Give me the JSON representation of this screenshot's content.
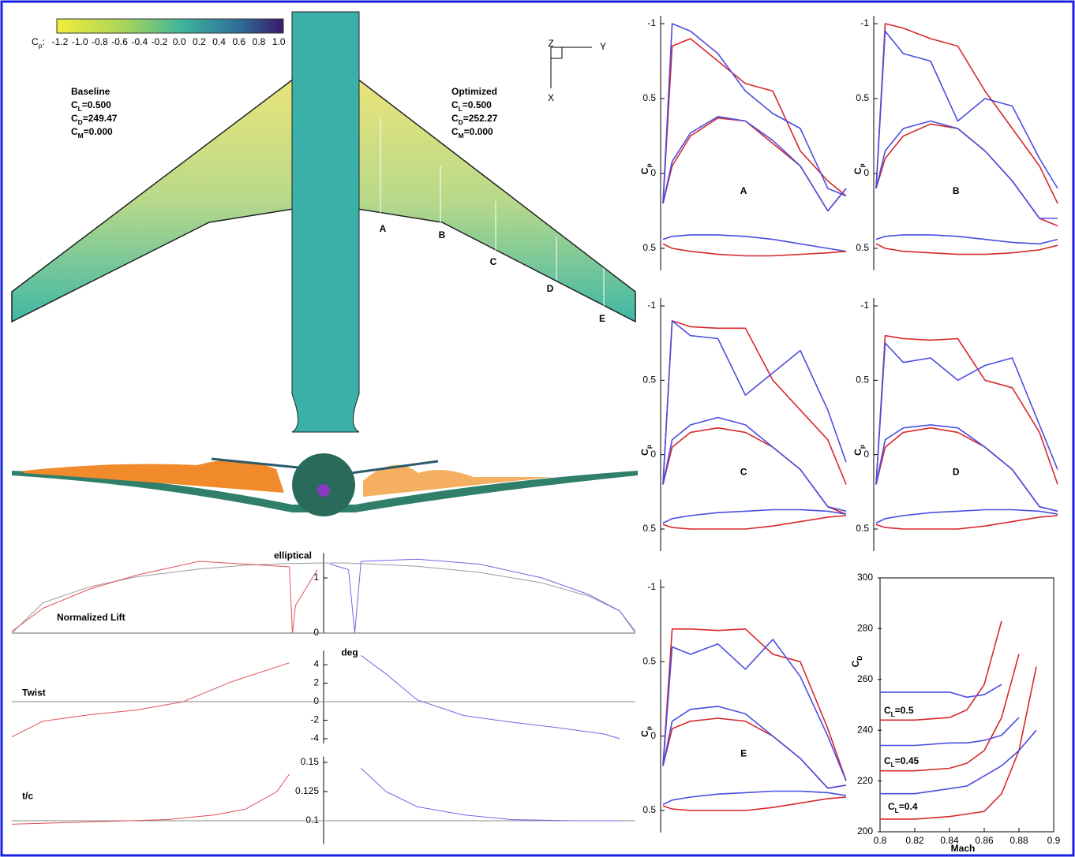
{
  "wing_view": {
    "colorbar_label": "C",
    "colorbar_label_sub": "p",
    "colorbar_colon": ":",
    "colorbar_ticks": [
      "-1.2",
      "-1.0",
      "-0.8",
      "-0.6",
      "-0.4",
      "-0.2",
      "0.0",
      "0.2",
      "0.4",
      "0.6",
      "0.8",
      "1.0"
    ],
    "baseline": {
      "title": "Baseline",
      "coefficients": [
        {
          "base": "C",
          "sub": "L",
          "text": "=0.500"
        },
        {
          "base": "C",
          "sub": "D",
          "text": "=249.47"
        },
        {
          "base": "C",
          "sub": "M",
          "text": "=0.000"
        }
      ]
    },
    "optimized": {
      "title": "Optimized",
      "coefficients": [
        {
          "base": "C",
          "sub": "L",
          "text": "=0.500"
        },
        {
          "base": "C",
          "sub": "D",
          "text": "=252.27"
        },
        {
          "base": "C",
          "sub": "M",
          "text": "=0.000"
        }
      ]
    },
    "axes_triad": [
      "Z",
      "Y",
      "X"
    ],
    "sections": [
      "A",
      "B",
      "C",
      "D",
      "E"
    ]
  },
  "chart_data": [
    {
      "type": "line",
      "label": "A",
      "ylabel": "C",
      "ylabel_sub": "p",
      "xlim": [
        0,
        1
      ],
      "ylim": [
        -1,
        0.5
      ],
      "y_inverted": true,
      "yticks": [
        -1,
        {
          "value": -0.5,
          "label": "0.5"
        },
        0,
        0.5
      ],
      "x": [
        0,
        0.05,
        0.15,
        0.3,
        0.45,
        0.6,
        0.75,
        0.9,
        1
      ],
      "series": [
        {
          "color": "#d8282c",
          "values": [
            0.2,
            -0.85,
            -0.9,
            -0.75,
            -0.6,
            -0.55,
            -0.15,
            0.05,
            0.15
          ]
        },
        {
          "color": "#4a4ee0",
          "values": [
            0.2,
            -1.0,
            -0.95,
            -0.8,
            -0.55,
            -0.4,
            -0.3,
            0.1,
            0.15
          ]
        },
        {
          "color": "#d8282c",
          "values": [
            0.2,
            -0.05,
            -0.25,
            -0.37,
            -0.35,
            -0.2,
            -0.05,
            0.25,
            0.1
          ]
        },
        {
          "color": "#4a4ee0",
          "values": [
            0.2,
            -0.08,
            -0.27,
            -0.38,
            -0.35,
            -0.22,
            -0.05,
            0.25,
            0.1
          ]
        },
        {
          "color": "#4a4ee0",
          "values": [
            0.44,
            0.42,
            0.41,
            0.41,
            0.42,
            0.44,
            0.47,
            0.5,
            0.52
          ]
        },
        {
          "color": "#d8282c",
          "values": [
            0.47,
            0.5,
            0.52,
            0.54,
            0.55,
            0.55,
            0.54,
            0.53,
            0.52
          ]
        }
      ]
    },
    {
      "type": "line",
      "label": "B",
      "ylabel": "C",
      "ylabel_sub": "p",
      "xlim": [
        0,
        1
      ],
      "ylim": [
        -1,
        0.5
      ],
      "y_inverted": true,
      "yticks": [
        -1,
        {
          "value": -0.5,
          "label": "0.5"
        },
        0,
        0.5
      ],
      "x": [
        0,
        0.05,
        0.15,
        0.3,
        0.45,
        0.6,
        0.75,
        0.9,
        1
      ],
      "series": [
        {
          "color": "#d8282c",
          "values": [
            0.1,
            -1.0,
            -0.97,
            -0.9,
            -0.85,
            -0.55,
            -0.3,
            -0.05,
            0.2
          ]
        },
        {
          "color": "#4a4ee0",
          "values": [
            0.1,
            -0.95,
            -0.8,
            -0.75,
            -0.35,
            -0.5,
            -0.45,
            -0.1,
            0.1
          ]
        },
        {
          "color": "#d8282c",
          "values": [
            0.1,
            -0.1,
            -0.25,
            -0.33,
            -0.3,
            -0.15,
            0.05,
            0.3,
            0.35
          ]
        },
        {
          "color": "#4a4ee0",
          "values": [
            0.1,
            -0.15,
            -0.3,
            -0.35,
            -0.3,
            -0.15,
            0.05,
            0.3,
            0.3
          ]
        },
        {
          "color": "#4a4ee0",
          "values": [
            0.44,
            0.42,
            0.41,
            0.41,
            0.42,
            0.44,
            0.46,
            0.47,
            0.44
          ]
        },
        {
          "color": "#d8282c",
          "values": [
            0.47,
            0.5,
            0.52,
            0.53,
            0.54,
            0.54,
            0.53,
            0.51,
            0.48
          ]
        }
      ]
    },
    {
      "type": "line",
      "label": "C",
      "ylabel": "C",
      "ylabel_sub": "p",
      "xlim": [
        0,
        1
      ],
      "ylim": [
        -1,
        0.5
      ],
      "y_inverted": true,
      "yticks": [
        -1,
        {
          "value": -0.5,
          "label": "0.5"
        },
        0,
        0.5
      ],
      "x": [
        0,
        0.05,
        0.15,
        0.3,
        0.45,
        0.6,
        0.75,
        0.9,
        1
      ],
      "series": [
        {
          "color": "#d8282c",
          "values": [
            0.2,
            -0.9,
            -0.86,
            -0.85,
            -0.85,
            -0.5,
            -0.3,
            -0.1,
            0.2
          ]
        },
        {
          "color": "#4a4ee0",
          "values": [
            0.2,
            -0.9,
            -0.8,
            -0.78,
            -0.4,
            -0.55,
            -0.7,
            -0.3,
            0.05
          ]
        },
        {
          "color": "#d8282c",
          "values": [
            0.2,
            -0.05,
            -0.15,
            -0.18,
            -0.15,
            -0.05,
            0.1,
            0.35,
            0.4
          ]
        },
        {
          "color": "#4a4ee0",
          "values": [
            0.2,
            -0.1,
            -0.2,
            -0.25,
            -0.2,
            -0.05,
            0.1,
            0.35,
            0.38
          ]
        },
        {
          "color": "#4a4ee0",
          "values": [
            0.46,
            0.43,
            0.41,
            0.39,
            0.38,
            0.37,
            0.37,
            0.38,
            0.4
          ]
        },
        {
          "color": "#d8282c",
          "values": [
            0.47,
            0.49,
            0.5,
            0.5,
            0.5,
            0.48,
            0.45,
            0.42,
            0.41
          ]
        }
      ]
    },
    {
      "type": "line",
      "label": "D",
      "ylabel": "C",
      "ylabel_sub": "p",
      "xlim": [
        0,
        1
      ],
      "ylim": [
        -1,
        0.5
      ],
      "y_inverted": true,
      "yticks": [
        -1,
        {
          "value": -0.5,
          "label": "0.5"
        },
        0,
        0.5
      ],
      "x": [
        0,
        0.05,
        0.15,
        0.3,
        0.45,
        0.6,
        0.75,
        0.9,
        1
      ],
      "series": [
        {
          "color": "#d8282c",
          "values": [
            0.2,
            -0.8,
            -0.78,
            -0.77,
            -0.78,
            -0.5,
            -0.45,
            -0.15,
            0.2
          ]
        },
        {
          "color": "#4a4ee0",
          "values": [
            0.2,
            -0.75,
            -0.62,
            -0.65,
            -0.5,
            -0.6,
            -0.65,
            -0.2,
            0.1
          ]
        },
        {
          "color": "#d8282c",
          "values": [
            0.2,
            -0.05,
            -0.15,
            -0.18,
            -0.15,
            -0.05,
            0.1,
            0.35,
            0.38
          ]
        },
        {
          "color": "#4a4ee0",
          "values": [
            0.2,
            -0.1,
            -0.18,
            -0.2,
            -0.18,
            -0.05,
            0.1,
            0.35,
            0.38
          ]
        },
        {
          "color": "#4a4ee0",
          "values": [
            0.46,
            0.43,
            0.41,
            0.39,
            0.38,
            0.37,
            0.37,
            0.38,
            0.4
          ]
        },
        {
          "color": "#d8282c",
          "values": [
            0.47,
            0.49,
            0.5,
            0.5,
            0.5,
            0.48,
            0.45,
            0.42,
            0.41
          ]
        }
      ]
    },
    {
      "type": "line",
      "label": "E",
      "ylabel": "C",
      "ylabel_sub": "p",
      "xlim": [
        0,
        1
      ],
      "ylim": [
        -1,
        0.5
      ],
      "y_inverted": true,
      "yticks": [
        -1,
        {
          "value": -0.5,
          "label": "0.5"
        },
        0,
        0.5
      ],
      "x": [
        0,
        0.05,
        0.15,
        0.3,
        0.45,
        0.6,
        0.75,
        0.9,
        1
      ],
      "series": [
        {
          "color": "#d8282c",
          "values": [
            0.2,
            -0.72,
            -0.72,
            -0.71,
            -0.72,
            -0.55,
            -0.5,
            -0.05,
            0.3
          ]
        },
        {
          "color": "#4a4ee0",
          "values": [
            0.2,
            -0.6,
            -0.55,
            -0.62,
            -0.45,
            -0.65,
            -0.4,
            0.0,
            0.3
          ]
        },
        {
          "color": "#d8282c",
          "values": [
            0.2,
            -0.05,
            -0.1,
            -0.12,
            -0.1,
            0.0,
            0.15,
            0.35,
            0.33
          ]
        },
        {
          "color": "#4a4ee0",
          "values": [
            0.2,
            -0.1,
            -0.18,
            -0.2,
            -0.15,
            0.0,
            0.15,
            0.35,
            0.33
          ]
        },
        {
          "color": "#4a4ee0",
          "values": [
            0.46,
            0.43,
            0.41,
            0.39,
            0.38,
            0.37,
            0.37,
            0.38,
            0.4
          ]
        },
        {
          "color": "#d8282c",
          "values": [
            0.47,
            0.49,
            0.5,
            0.5,
            0.5,
            0.48,
            0.45,
            0.42,
            0.41
          ]
        }
      ]
    },
    {
      "type": "line",
      "xlabel": "Mach",
      "ylabel": "C",
      "ylabel_sub": "D",
      "xlim": [
        0.8,
        0.9
      ],
      "ylim": [
        200,
        300
      ],
      "xticks": [
        0.8,
        0.82,
        0.84,
        0.86,
        0.88,
        0.9
      ],
      "yticks": [
        200,
        220,
        240,
        260,
        280,
        300
      ],
      "x": [
        0.8,
        0.82,
        0.84,
        0.85,
        0.86,
        0.87,
        0.88,
        0.89
      ],
      "series": [
        {
          "color": "#d8282c",
          "values": [
            244,
            244,
            245,
            248,
            258,
            283,
            null,
            null
          ]
        },
        {
          "color": "#4a4ee0",
          "values": [
            255,
            255,
            255,
            253,
            254,
            258,
            null,
            null
          ]
        },
        {
          "color": "#d8282c",
          "values": [
            224,
            224,
            225,
            227,
            232,
            245,
            270,
            null
          ]
        },
        {
          "color": "#4a4ee0",
          "values": [
            234,
            234,
            235,
            235,
            236,
            238,
            245,
            null
          ]
        },
        {
          "color": "#d8282c",
          "values": [
            205,
            205,
            206,
            207,
            208,
            215,
            232,
            265
          ]
        },
        {
          "color": "#4a4ee0",
          "values": [
            215,
            215,
            217,
            218,
            222,
            226,
            232,
            240
          ]
        }
      ],
      "annotations": [
        {
          "base": "C",
          "sub": "L",
          "text": "=0.5"
        },
        {
          "base": "C",
          "sub": "L",
          "text": "=0.45"
        },
        {
          "base": "C",
          "sub": "L",
          "text": "=0.4"
        }
      ]
    },
    {
      "type": "line",
      "title": "Normalized Lift",
      "annotation": "elliptical",
      "xlim": [
        -1,
        1
      ],
      "ylim": [
        0,
        1.45
      ],
      "yticks": [
        0,
        1
      ],
      "x": [
        -1,
        -0.9,
        -0.75,
        -0.6,
        -0.4,
        -0.25,
        -0.11,
        -0.1,
        -0.09,
        -0.02,
        0.02,
        0.08,
        0.1,
        0.12,
        0.3,
        0.5,
        0.7,
        0.85,
        0.95,
        1
      ],
      "series": [
        {
          "color": "#9a9a9a",
          "values": [
            0,
            0.55,
            0.84,
            1.02,
            1.16,
            1.23,
            1.26,
            1.26,
            1.26,
            1.27,
            1.27,
            1.27,
            1.26,
            1.26,
            1.21,
            1.1,
            0.91,
            0.67,
            0.4,
            0
          ]
        },
        {
          "color": "#e0505a",
          "values": [
            0.03,
            0.45,
            0.8,
            1.05,
            1.3,
            1.25,
            1.2,
            0,
            0.5,
            1.15,
            null,
            null,
            null,
            null,
            null,
            null,
            null,
            null,
            null,
            null
          ]
        },
        {
          "color": "#6a6ae8",
          "values": [
            null,
            null,
            null,
            null,
            null,
            null,
            null,
            null,
            null,
            null,
            1.25,
            1.15,
            0,
            1.3,
            1.34,
            1.25,
            1.0,
            0.7,
            0.4,
            0.03
          ]
        }
      ]
    },
    {
      "type": "line",
      "title": "Twist",
      "unit": "deg",
      "xlim": [
        -1,
        1
      ],
      "ylim": [
        -4.5,
        5.5
      ],
      "yticks": [
        -4,
        -2,
        0,
        2,
        4
      ],
      "hline": 0,
      "x": [
        -1,
        -0.9,
        -0.75,
        -0.6,
        -0.45,
        -0.3,
        -0.11,
        0.12,
        0.2,
        0.3,
        0.45,
        0.6,
        0.75,
        0.9,
        0.95
      ],
      "series": [
        {
          "color": "#e0505a",
          "values": [
            -3.8,
            -2.1,
            -1.4,
            -0.9,
            0,
            2.1,
            4.2,
            null,
            null,
            null,
            null,
            null,
            null,
            null,
            null
          ]
        },
        {
          "color": "#6a6ae8",
          "values": [
            null,
            null,
            null,
            null,
            null,
            null,
            null,
            5.0,
            3.0,
            0.2,
            -1.5,
            -2.2,
            -2.8,
            -3.5,
            -4.0
          ]
        }
      ]
    },
    {
      "type": "line",
      "title": "t/c",
      "xlim": [
        -1,
        1
      ],
      "ylim": [
        0.08,
        0.155
      ],
      "yticks": [
        0.1,
        0.125,
        0.15
      ],
      "hline": 0.1,
      "x": [
        -1,
        -0.75,
        -0.5,
        -0.35,
        -0.25,
        -0.15,
        -0.11,
        0.12,
        0.2,
        0.3,
        0.45,
        0.6,
        0.8,
        0.95
      ],
      "series": [
        {
          "color": "#e0505a",
          "values": [
            0.097,
            0.099,
            0.101,
            0.105,
            0.11,
            0.125,
            0.14,
            null,
            null,
            null,
            null,
            null,
            null,
            null
          ]
        },
        {
          "color": "#6a6ae8",
          "values": [
            null,
            null,
            null,
            null,
            null,
            null,
            null,
            0.145,
            0.125,
            0.112,
            0.105,
            0.101,
            0.1,
            0.1
          ]
        }
      ]
    }
  ]
}
